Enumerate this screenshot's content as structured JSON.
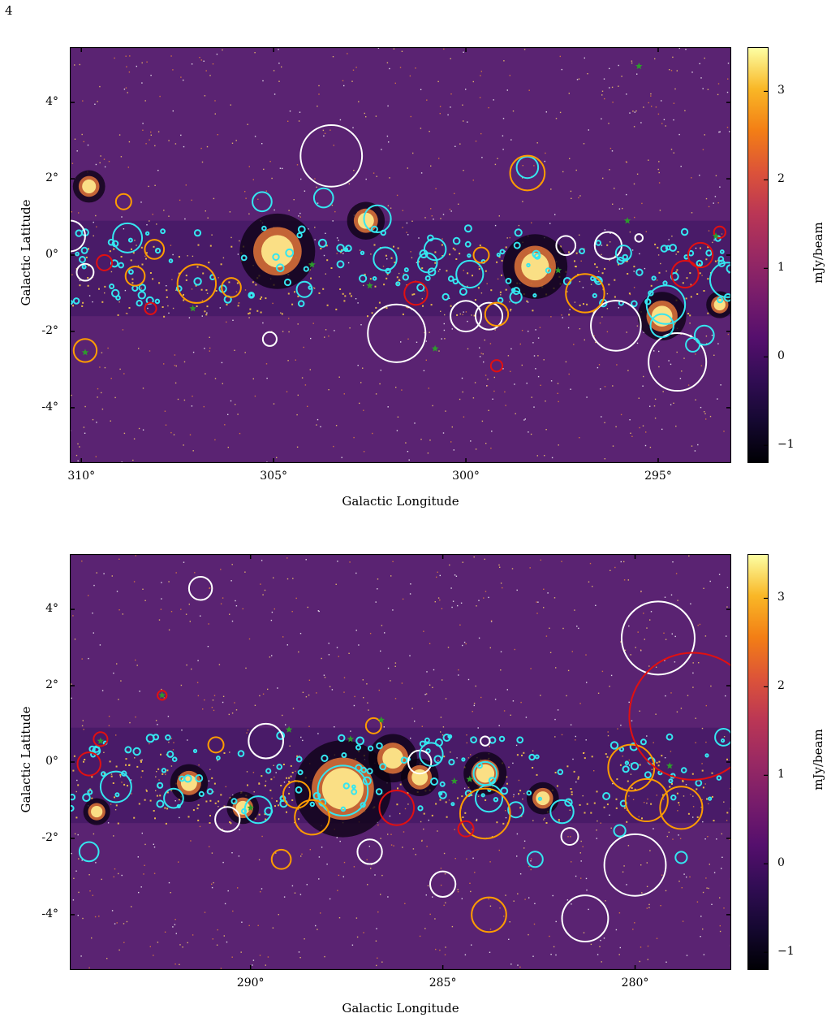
{
  "page_number": "4",
  "colorbar": {
    "label": "mJy/beam",
    "ticks": [
      "3",
      "2",
      "1",
      "0",
      "−1"
    ],
    "tick_values": [
      3,
      2,
      1,
      0,
      -1
    ],
    "range": [
      -1.2,
      3.5
    ],
    "colormap": "inferno"
  },
  "region_colors": {
    "cyan": "#35e6f0",
    "white": "#ffffff",
    "orange": "#ff9c00",
    "red": "#e21010",
    "star": "#2e9a2e"
  },
  "chart_data": [
    {
      "type": "image",
      "xlabel": "Galactic Longitude",
      "ylabel": "Galactic Latitude",
      "xticks": [
        "310°",
        "305°",
        "300°",
        "295°"
      ],
      "xtick_values": [
        310,
        305,
        300,
        295
      ],
      "yticks": [
        "4°",
        "2°",
        "0°",
        "-2°",
        "-4°"
      ],
      "ytick_values": [
        4,
        2,
        0,
        -2,
        -4
      ],
      "xlim": [
        310.3,
        293.1
      ],
      "ylim": [
        -5.45,
        5.45
      ],
      "bright_regions": [
        {
          "l": 304.9,
          "b": 0.1,
          "size": 0.7
        },
        {
          "l": 302.6,
          "b": 0.9,
          "size": 0.35
        },
        {
          "l": 298.2,
          "b": -0.3,
          "size": 0.6
        },
        {
          "l": 294.9,
          "b": -1.6,
          "size": 0.45
        },
        {
          "l": 293.4,
          "b": -1.3,
          "size": 0.25
        },
        {
          "l": 309.8,
          "b": 1.8,
          "size": 0.3
        }
      ],
      "regions": [
        {
          "l": 303.5,
          "b": 2.6,
          "r": 0.8,
          "c": "white"
        },
        {
          "l": 301.8,
          "b": -2.05,
          "r": 0.75,
          "c": "white"
        },
        {
          "l": 296.1,
          "b": -1.85,
          "r": 0.65,
          "c": "white"
        },
        {
          "l": 294.5,
          "b": -2.8,
          "r": 0.75,
          "c": "white"
        },
        {
          "l": 300.0,
          "b": -1.6,
          "r": 0.4,
          "c": "white"
        },
        {
          "l": 299.4,
          "b": -1.6,
          "r": 0.35,
          "c": "white"
        },
        {
          "l": 296.3,
          "b": 0.25,
          "r": 0.35,
          "c": "white"
        },
        {
          "l": 297.4,
          "b": 0.25,
          "r": 0.25,
          "c": "white"
        },
        {
          "l": 305.1,
          "b": -2.2,
          "r": 0.18,
          "c": "white"
        },
        {
          "l": 309.9,
          "b": -0.45,
          "r": 0.22,
          "c": "white"
        },
        {
          "l": 310.3,
          "b": 0.5,
          "r": 0.4,
          "c": "white"
        },
        {
          "l": 295.5,
          "b": 0.45,
          "r": 0.1,
          "c": "white"
        },
        {
          "l": 308.8,
          "b": 0.45,
          "r": 0.38,
          "c": "cyan"
        },
        {
          "l": 302.3,
          "b": 0.95,
          "r": 0.35,
          "c": "cyan"
        },
        {
          "l": 298.4,
          "b": 2.3,
          "r": 0.28,
          "c": "cyan"
        },
        {
          "l": 303.7,
          "b": 1.5,
          "r": 0.25,
          "c": "cyan"
        },
        {
          "l": 300.8,
          "b": 0.15,
          "r": 0.28,
          "c": "cyan"
        },
        {
          "l": 299.9,
          "b": -0.5,
          "r": 0.35,
          "c": "cyan"
        },
        {
          "l": 294.8,
          "b": -1.3,
          "r": 0.5,
          "c": "cyan"
        },
        {
          "l": 293.2,
          "b": -0.65,
          "r": 0.45,
          "c": "cyan"
        },
        {
          "l": 294.9,
          "b": -1.85,
          "r": 0.3,
          "c": "cyan"
        },
        {
          "l": 293.8,
          "b": -2.1,
          "r": 0.25,
          "c": "cyan"
        },
        {
          "l": 305.3,
          "b": 1.4,
          "r": 0.25,
          "c": "cyan"
        },
        {
          "l": 304.2,
          "b": -0.9,
          "r": 0.2,
          "c": "cyan"
        },
        {
          "l": 302.1,
          "b": -0.1,
          "r": 0.3,
          "c": "cyan"
        },
        {
          "l": 301.0,
          "b": -0.2,
          "r": 0.25,
          "c": "cyan"
        },
        {
          "l": 295.9,
          "b": 0.05,
          "r": 0.2,
          "c": "cyan"
        },
        {
          "l": 294.1,
          "b": -2.35,
          "r": 0.18,
          "c": "cyan"
        },
        {
          "l": 298.7,
          "b": -1.1,
          "r": 0.15,
          "c": "cyan"
        },
        {
          "l": 298.4,
          "b": 2.15,
          "r": 0.45,
          "c": "orange"
        },
        {
          "l": 307.0,
          "b": -0.75,
          "r": 0.5,
          "c": "orange"
        },
        {
          "l": 296.9,
          "b": -1.0,
          "r": 0.5,
          "c": "orange"
        },
        {
          "l": 309.9,
          "b": -2.5,
          "r": 0.3,
          "c": "orange"
        },
        {
          "l": 308.6,
          "b": -0.55,
          "r": 0.25,
          "c": "orange"
        },
        {
          "l": 308.1,
          "b": 0.15,
          "r": 0.25,
          "c": "orange"
        },
        {
          "l": 306.1,
          "b": -0.85,
          "r": 0.25,
          "c": "orange"
        },
        {
          "l": 299.2,
          "b": -1.55,
          "r": 0.3,
          "c": "orange"
        },
        {
          "l": 308.9,
          "b": 1.4,
          "r": 0.2,
          "c": "orange"
        },
        {
          "l": 299.6,
          "b": 0.0,
          "r": 0.2,
          "c": "orange"
        },
        {
          "l": 294.3,
          "b": -0.5,
          "r": 0.35,
          "c": "red"
        },
        {
          "l": 293.9,
          "b": 0.0,
          "r": 0.32,
          "c": "red"
        },
        {
          "l": 301.3,
          "b": -1.0,
          "r": 0.3,
          "c": "red"
        },
        {
          "l": 299.2,
          "b": -2.9,
          "r": 0.15,
          "c": "red"
        },
        {
          "l": 308.2,
          "b": -1.4,
          "r": 0.15,
          "c": "red"
        },
        {
          "l": 293.4,
          "b": 0.6,
          "r": 0.15,
          "c": "red"
        },
        {
          "l": 309.4,
          "b": -0.2,
          "r": 0.2,
          "c": "red"
        }
      ],
      "stars": [
        {
          "l": 295.5,
          "b": 4.95
        },
        {
          "l": 295.8,
          "b": 0.9
        },
        {
          "l": 293.5,
          "b": 0.5
        },
        {
          "l": 300.8,
          "b": -2.45
        },
        {
          "l": 307.1,
          "b": -1.4
        },
        {
          "l": 309.9,
          "b": -2.55
        },
        {
          "l": 304.0,
          "b": -0.25
        },
        {
          "l": 302.5,
          "b": -0.8
        },
        {
          "l": 297.6,
          "b": -0.4
        }
      ]
    },
    {
      "type": "image",
      "xlabel": "Galactic Longitude",
      "ylabel": "Galactic Latitude",
      "xticks": [
        "290°",
        "285°",
        "280°"
      ],
      "xtick_values": [
        290,
        285,
        280
      ],
      "yticks": [
        "4°",
        "2°",
        "0°",
        "-2°",
        "-4°"
      ],
      "ytick_values": [
        4,
        2,
        0,
        -2,
        -4
      ],
      "xlim": [
        294.7,
        277.5
      ],
      "ylim": [
        -5.45,
        5.45
      ],
      "bright_regions": [
        {
          "l": 287.6,
          "b": -0.7,
          "size": 0.9
        },
        {
          "l": 286.3,
          "b": 0.1,
          "size": 0.45
        },
        {
          "l": 285.6,
          "b": -0.4,
          "size": 0.35
        },
        {
          "l": 283.9,
          "b": -0.3,
          "size": 0.4
        },
        {
          "l": 282.4,
          "b": -0.95,
          "size": 0.3
        },
        {
          "l": 291.6,
          "b": -0.55,
          "size": 0.35
        },
        {
          "l": 290.2,
          "b": -1.2,
          "size": 0.3
        },
        {
          "l": 294.0,
          "b": -1.3,
          "size": 0.25
        }
      ],
      "regions": [
        {
          "l": 279.4,
          "b": 3.25,
          "r": 0.95,
          "c": "white"
        },
        {
          "l": 280.0,
          "b": -2.7,
          "r": 0.8,
          "c": "white"
        },
        {
          "l": 281.3,
          "b": -4.1,
          "r": 0.6,
          "c": "white"
        },
        {
          "l": 289.6,
          "b": 0.55,
          "r": 0.45,
          "c": "white"
        },
        {
          "l": 285.0,
          "b": -3.2,
          "r": 0.33,
          "c": "white"
        },
        {
          "l": 286.9,
          "b": -2.35,
          "r": 0.32,
          "c": "white"
        },
        {
          "l": 291.3,
          "b": 4.55,
          "r": 0.3,
          "c": "white"
        },
        {
          "l": 285.6,
          "b": 0.0,
          "r": 0.3,
          "c": "white"
        },
        {
          "l": 290.6,
          "b": -1.5,
          "r": 0.32,
          "c": "white"
        },
        {
          "l": 281.7,
          "b": -1.95,
          "r": 0.22,
          "c": "white"
        },
        {
          "l": 283.9,
          "b": 0.55,
          "r": 0.12,
          "c": "white"
        },
        {
          "l": 287.6,
          "b": -0.75,
          "r": 0.65,
          "c": "cyan"
        },
        {
          "l": 293.5,
          "b": -0.65,
          "r": 0.4,
          "c": "cyan"
        },
        {
          "l": 292.0,
          "b": -0.95,
          "r": 0.25,
          "c": "cyan"
        },
        {
          "l": 289.8,
          "b": -1.25,
          "r": 0.35,
          "c": "cyan"
        },
        {
          "l": 283.9,
          "b": -0.3,
          "r": 0.3,
          "c": "cyan"
        },
        {
          "l": 285.3,
          "b": 0.2,
          "r": 0.3,
          "c": "cyan"
        },
        {
          "l": 281.9,
          "b": -1.3,
          "r": 0.3,
          "c": "cyan"
        },
        {
          "l": 294.2,
          "b": -2.35,
          "r": 0.25,
          "c": "cyan"
        },
        {
          "l": 277.7,
          "b": 0.65,
          "r": 0.22,
          "c": "cyan"
        },
        {
          "l": 282.6,
          "b": -2.55,
          "r": 0.2,
          "c": "cyan"
        },
        {
          "l": 283.1,
          "b": -1.25,
          "r": 0.2,
          "c": "cyan"
        },
        {
          "l": 280.4,
          "b": -1.8,
          "r": 0.15,
          "c": "cyan"
        },
        {
          "l": 278.8,
          "b": -2.5,
          "r": 0.15,
          "c": "cyan"
        },
        {
          "l": 283.8,
          "b": -0.95,
          "r": 0.35,
          "c": "cyan"
        },
        {
          "l": 280.1,
          "b": -0.15,
          "r": 0.6,
          "c": "orange"
        },
        {
          "l": 279.7,
          "b": -1.0,
          "r": 0.55,
          "c": "orange"
        },
        {
          "l": 278.8,
          "b": -1.2,
          "r": 0.55,
          "c": "orange"
        },
        {
          "l": 283.9,
          "b": -1.35,
          "r": 0.65,
          "c": "orange"
        },
        {
          "l": 288.4,
          "b": -1.45,
          "r": 0.45,
          "c": "orange"
        },
        {
          "l": 283.8,
          "b": -4.0,
          "r": 0.45,
          "c": "orange"
        },
        {
          "l": 289.2,
          "b": -2.55,
          "r": 0.25,
          "c": "orange"
        },
        {
          "l": 288.8,
          "b": -0.85,
          "r": 0.35,
          "c": "orange"
        },
        {
          "l": 286.8,
          "b": 0.95,
          "r": 0.2,
          "c": "orange"
        },
        {
          "l": 290.9,
          "b": 0.45,
          "r": 0.2,
          "c": "orange"
        },
        {
          "l": 278.5,
          "b": 1.2,
          "r": 1.65,
          "c": "red"
        },
        {
          "l": 294.2,
          "b": -0.05,
          "r": 0.3,
          "c": "red"
        },
        {
          "l": 286.2,
          "b": -1.2,
          "r": 0.45,
          "c": "red"
        },
        {
          "l": 292.3,
          "b": 1.75,
          "r": 0.12,
          "c": "red"
        },
        {
          "l": 293.9,
          "b": 0.6,
          "r": 0.18,
          "c": "red"
        },
        {
          "l": 284.4,
          "b": -1.75,
          "r": 0.2,
          "c": "red"
        }
      ],
      "stars": [
        {
          "l": 292.3,
          "b": 1.75
        },
        {
          "l": 289.0,
          "b": 0.85
        },
        {
          "l": 287.4,
          "b": 0.6
        },
        {
          "l": 286.6,
          "b": 1.1
        },
        {
          "l": 284.7,
          "b": -0.5
        },
        {
          "l": 284.3,
          "b": -0.45
        },
        {
          "l": 279.1,
          "b": -0.1
        },
        {
          "l": 293.9,
          "b": 0.55
        },
        {
          "l": 290.0,
          "b": -1.2
        }
      ]
    }
  ]
}
